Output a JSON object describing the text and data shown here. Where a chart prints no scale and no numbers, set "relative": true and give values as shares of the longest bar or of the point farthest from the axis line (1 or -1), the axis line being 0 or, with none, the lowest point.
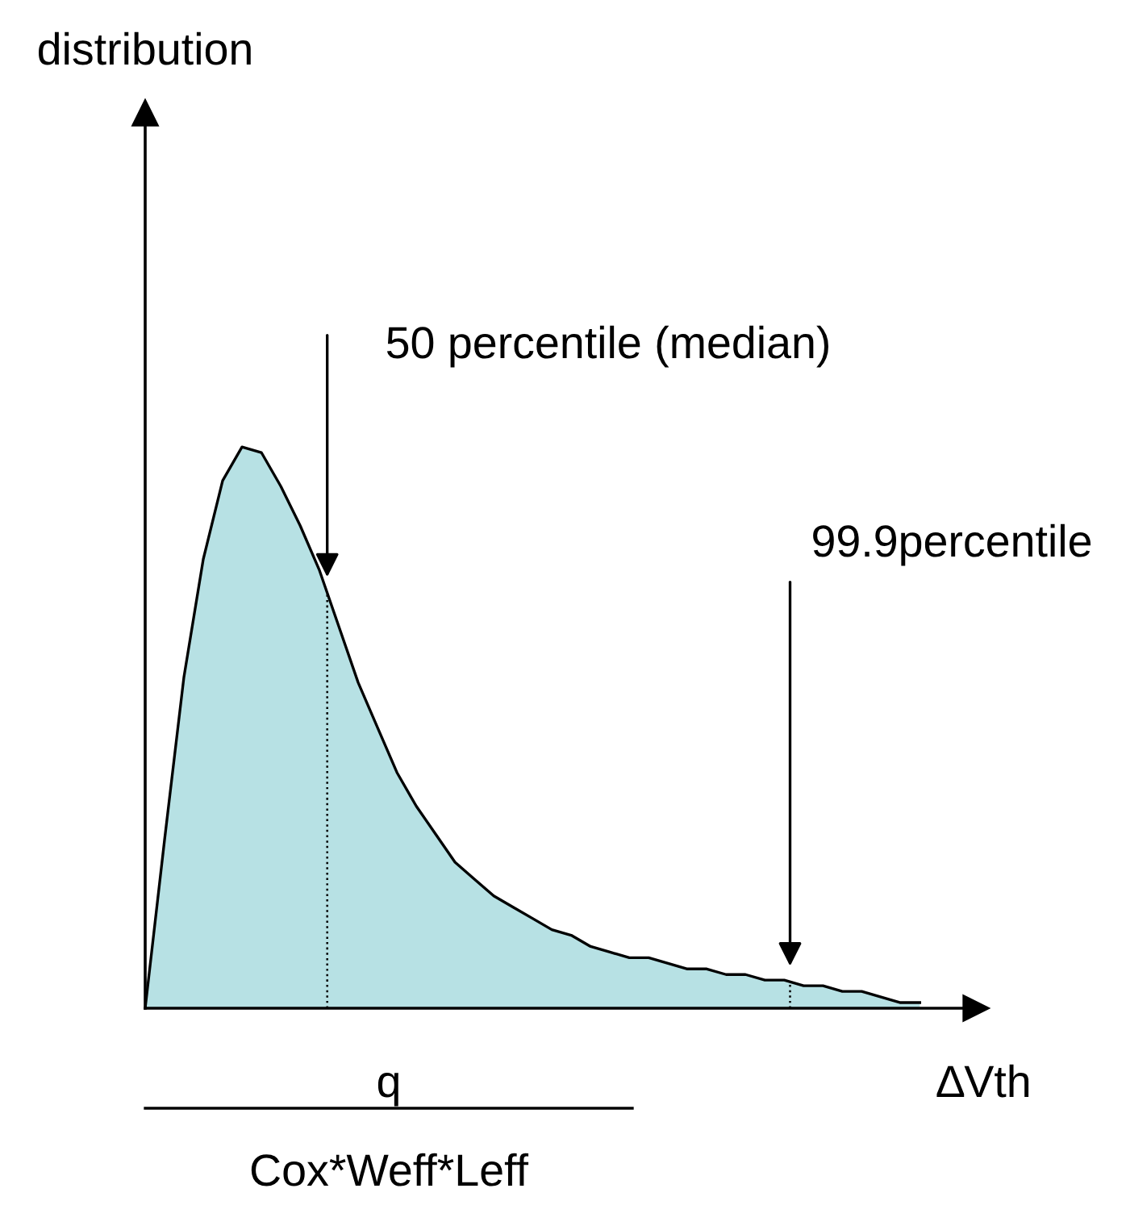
{
  "chart_data": {
    "type": "area",
    "relative": true,
    "xlabel": "∆Vth",
    "categories": [
      null,
      null,
      null,
      null,
      null,
      null,
      null,
      null,
      null,
      null,
      null,
      null,
      null,
      null,
      null,
      null,
      null,
      null,
      null,
      null,
      null,
      null,
      null,
      null,
      null,
      null,
      null,
      null,
      null,
      null,
      null,
      null,
      null,
      null,
      null,
      null,
      null,
      null,
      null,
      null,
      null
    ],
    "series": [
      {
        "color": "#b7e1e4",
        "values": [
          0,
          0.3,
          0.59,
          0.8,
          0.94,
          1,
          0.99,
          0.93,
          0.86,
          0.78,
          0.68,
          0.58,
          0.5,
          0.42,
          0.36,
          0.31,
          0.26,
          0.23,
          0.2,
          0.18,
          0.16,
          0.14,
          0.13,
          0.11,
          0.1,
          0.09,
          0.09,
          0.08,
          0.07,
          0.07,
          0.06,
          0.06,
          0.05,
          0.05,
          0.04,
          0.04,
          0.03,
          0.03,
          0.02,
          0.01,
          0.01
        ]
      }
    ],
    "annotations": [
      "distribution",
      "50 percentile (median)",
      "99.9percentile",
      "q",
      "Cox*Weff*Leff"
    ]
  }
}
